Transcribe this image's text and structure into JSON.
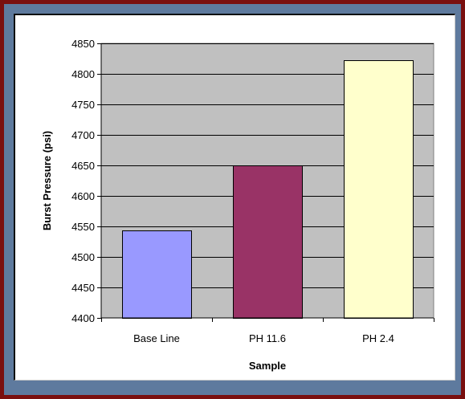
{
  "chart_data": {
    "type": "bar",
    "title": "",
    "xlabel": "Sample",
    "ylabel": "Burst Pressure (psi)",
    "categories": [
      "Base Line",
      "PH  11.6",
      "PH  2.4"
    ],
    "values": [
      4543,
      4650,
      4823
    ],
    "bar_colors": [
      "#9999ff",
      "#993366",
      "#ffffcc"
    ],
    "ylim": [
      4400,
      4850
    ],
    "yticks": [
      4400,
      4450,
      4500,
      4550,
      4600,
      4650,
      4700,
      4750,
      4800,
      4850
    ],
    "grid": true,
    "plot_background": "#c0c0c0",
    "legend": "none"
  }
}
